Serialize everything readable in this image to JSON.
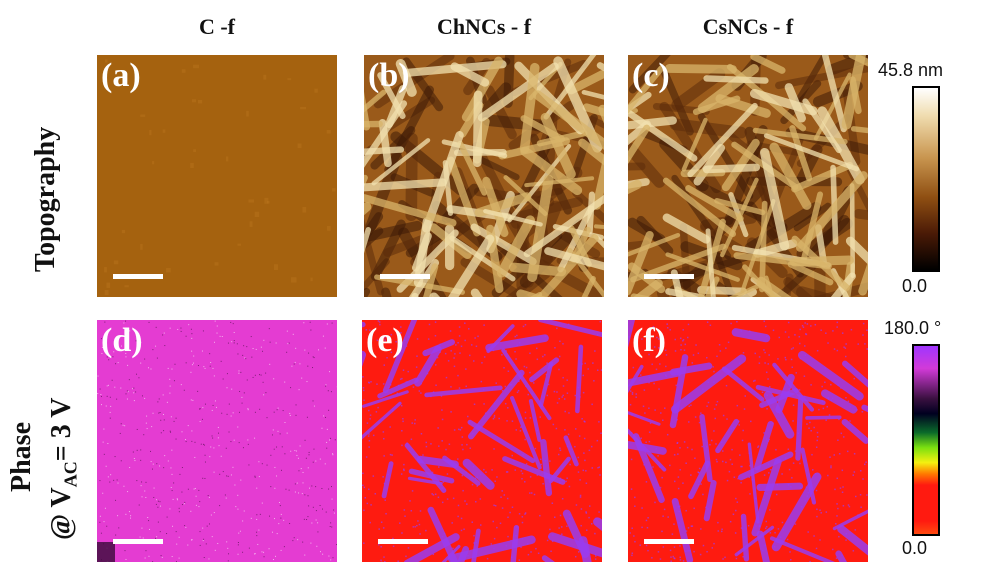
{
  "columns": [
    "C -f",
    "ChNCs - f",
    "CsNCs - f"
  ],
  "rows": {
    "topography": "Topography",
    "phase_line1": "Phase",
    "phase_at": "@ V",
    "phase_sub": "AC",
    "phase_rest": "= 3 V"
  },
  "panels": [
    {
      "label": "(a)",
      "kind": "flat-topo"
    },
    {
      "label": "(b)",
      "kind": "fiber-topo"
    },
    {
      "label": "(c)",
      "kind": "fiber-topo"
    },
    {
      "label": "(d)",
      "kind": "magenta-phase"
    },
    {
      "label": "(e)",
      "kind": "red-phase"
    },
    {
      "label": "(f)",
      "kind": "red-phase"
    }
  ],
  "colorbars": {
    "topography": {
      "max": "45.8 nm",
      "min": "0.0"
    },
    "phase": {
      "max": "180.0 °",
      "min": "0.0"
    }
  },
  "colors": {
    "flat_topo": "#a5620f",
    "topo_light": "#f3e2b0",
    "topo_dark": "#3a1806",
    "phase_magenta": "#e43cd2",
    "phase_red": "#fe1b10",
    "phase_purple": "#9a3cf0"
  }
}
